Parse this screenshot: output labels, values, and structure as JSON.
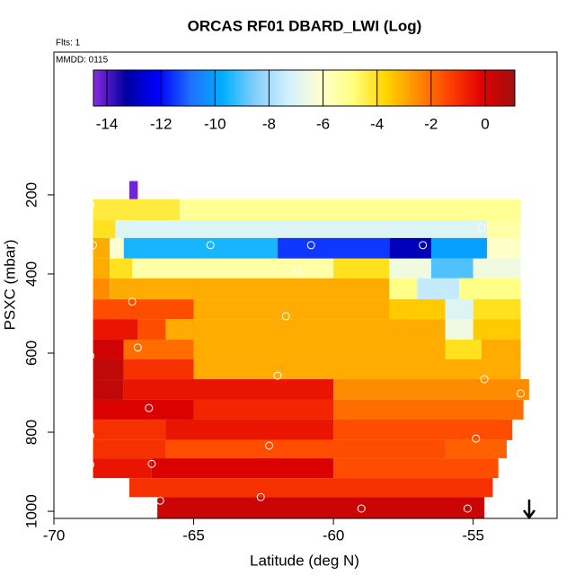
{
  "chart_data": {
    "type": "heatmap",
    "title": "ORCAS RF01 DBARD_LWI (Log)",
    "annotations": [
      "Flts: 1",
      "MMDD: 0115"
    ],
    "x_label": "Latitude (deg N)",
    "y_label": "PSXC (mbar)",
    "xlim": [
      -70,
      -52
    ],
    "xticks": [
      -70,
      -65,
      -60,
      -55
    ],
    "ylim": [
      1018,
      -161
    ],
    "yticks": [
      200,
      400,
      600,
      800,
      1000
    ],
    "colorbar": {
      "lim": [
        -14.5,
        1.1
      ],
      "ticks": [
        -14,
        -12,
        -10,
        -8,
        -6,
        -4,
        -2,
        0
      ],
      "colors": [
        "#8a2be2",
        "#0000a0",
        "#0000ff",
        "#1e70ff",
        "#00b0ff",
        "#87cefa",
        "#d0f0ff",
        "#ffffd0",
        "#ffff80",
        "#ffd700",
        "#ff8c00",
        "#ff4000",
        "#e00000",
        "#a01010"
      ]
    },
    "rows": [
      {
        "p": [
          165,
          211
        ],
        "cells": [
          {
            "lat": [
              -67.3,
              -67.0
            ],
            "value": -14.3
          }
        ]
      },
      {
        "p": [
          211,
          264
        ],
        "cells": [
          {
            "lat": [
              -68.6,
              -65.5
            ],
            "value": -4.3
          },
          {
            "lat": [
              -65.5,
              -53.3
            ],
            "value": -5.2
          }
        ]
      },
      {
        "p": [
          264,
          309
        ],
        "cells": [
          {
            "lat": [
              -68.6,
              -67.8
            ],
            "value": -4
          },
          {
            "lat": [
              -67.8,
              -54.5
            ],
            "value": -7
          },
          {
            "lat": [
              -54.5,
              -53.3
            ],
            "value": -5.5
          }
        ]
      },
      {
        "p": [
          309,
          361
        ],
        "cells": [
          {
            "lat": [
              -68.6,
              -68
            ],
            "value": -3
          },
          {
            "lat": [
              -68,
              -67.5
            ],
            "value": -6
          },
          {
            "lat": [
              -67.5,
              -62
            ],
            "value": -9.5
          },
          {
            "lat": [
              -62,
              -58
            ],
            "value": -11.5
          },
          {
            "lat": [
              -58,
              -56.5
            ],
            "value": -13
          },
          {
            "lat": [
              -56.5,
              -54.5
            ],
            "value": -10
          },
          {
            "lat": [
              -54.5,
              -53.3
            ],
            "value": -6
          }
        ]
      },
      {
        "p": [
          361,
          411
        ],
        "cells": [
          {
            "lat": [
              -68.6,
              -68
            ],
            "value": -3
          },
          {
            "lat": [
              -68,
              -67.2
            ],
            "value": -4
          },
          {
            "lat": [
              -67.2,
              -60
            ],
            "value": -5.5
          },
          {
            "lat": [
              -60,
              -58
            ],
            "value": -4
          },
          {
            "lat": [
              -58,
              -56.5
            ],
            "value": -6.5
          },
          {
            "lat": [
              -56.5,
              -55
            ],
            "value": -9
          },
          {
            "lat": [
              -55,
              -53.3
            ],
            "value": -6.5
          }
        ]
      },
      {
        "p": [
          411,
          464
        ],
        "cells": [
          {
            "lat": [
              -68.6,
              -68
            ],
            "value": -2.5
          },
          {
            "lat": [
              -68,
              -58
            ],
            "value": -3
          },
          {
            "lat": [
              -58,
              -57
            ],
            "value": -5
          },
          {
            "lat": [
              -57,
              -55.5
            ],
            "value": -7.5
          },
          {
            "lat": [
              -55.5,
              -53.3
            ],
            "value": -5
          }
        ]
      },
      {
        "p": [
          464,
          514
        ],
        "cells": [
          {
            "lat": [
              -68.6,
              -65
            ],
            "value": -1.5
          },
          {
            "lat": [
              -65,
              -58
            ],
            "value": -3
          },
          {
            "lat": [
              -58,
              -56
            ],
            "value": -3.5
          },
          {
            "lat": [
              -56,
              -55
            ],
            "value": -7
          },
          {
            "lat": [
              -55,
              -53.3
            ],
            "value": -4
          }
        ]
      },
      {
        "p": [
          514,
          566
        ],
        "cells": [
          {
            "lat": [
              -68.6,
              -67
            ],
            "value": -0.5
          },
          {
            "lat": [
              -67,
              -66
            ],
            "value": -1.5
          },
          {
            "lat": [
              -66,
              -56
            ],
            "value": -3
          },
          {
            "lat": [
              -56,
              -55
            ],
            "value": -6.5
          },
          {
            "lat": [
              -55,
              -53.3
            ],
            "value": -3.5
          }
        ]
      },
      {
        "p": [
          566,
          616
        ],
        "cells": [
          {
            "lat": [
              -68.6,
              -67.5
            ],
            "value": 0.2
          },
          {
            "lat": [
              -67.5,
              -65
            ],
            "value": -2
          },
          {
            "lat": [
              -65,
              -56
            ],
            "value": -3
          },
          {
            "lat": [
              -56,
              -54.7
            ],
            "value": -4
          },
          {
            "lat": [
              -54.7,
              -53.3
            ],
            "value": -3
          }
        ]
      },
      {
        "p": [
          616,
          666
        ],
        "cells": [
          {
            "lat": [
              -68.6,
              -67.5
            ],
            "value": 0.5
          },
          {
            "lat": [
              -67.5,
              -65
            ],
            "value": -1
          },
          {
            "lat": [
              -65,
              -53.3
            ],
            "value": -3
          }
        ]
      },
      {
        "p": [
          666,
          718
        ],
        "cells": [
          {
            "lat": [
              -68.6,
              -67.5
            ],
            "value": 0.5
          },
          {
            "lat": [
              -67.5,
              -60
            ],
            "value": -0.5
          },
          {
            "lat": [
              -60,
              -53
            ],
            "value": -2.5
          }
        ]
      },
      {
        "p": [
          718,
          768
        ],
        "cells": [
          {
            "lat": [
              -68.6,
              -65
            ],
            "value": 0
          },
          {
            "lat": [
              -65,
              -60
            ],
            "value": -0.8
          },
          {
            "lat": [
              -60,
              -53.2
            ],
            "value": -2
          }
        ]
      },
      {
        "p": [
          768,
          820
        ],
        "cells": [
          {
            "lat": [
              -68.6,
              -66
            ],
            "value": -1
          },
          {
            "lat": [
              -66,
              -60
            ],
            "value": -0.5
          },
          {
            "lat": [
              -60,
              -53.6
            ],
            "value": -1.5
          }
        ]
      },
      {
        "p": [
          820,
          866
        ],
        "cells": [
          {
            "lat": [
              -68.6,
              -66
            ],
            "value": -1
          },
          {
            "lat": [
              -66,
              -56
            ],
            "value": -1.5
          },
          {
            "lat": [
              -56,
              -53.8
            ],
            "value": -1.8
          }
        ]
      },
      {
        "p": [
          866,
          916
        ],
        "cells": [
          {
            "lat": [
              -68.6,
              -66.5
            ],
            "value": -0.5
          },
          {
            "lat": [
              -66.5,
              -60
            ],
            "value": 0
          },
          {
            "lat": [
              -60,
              -54.1
            ],
            "value": -1.5
          }
        ]
      },
      {
        "p": [
          916,
          964
        ],
        "cells": [
          {
            "lat": [
              -67.3,
              -54.3
            ],
            "value": -1
          }
        ]
      },
      {
        "p": [
          964,
          1018
        ],
        "cells": [
          {
            "lat": [
              -66.3,
              -54.6
            ],
            "value": 0.3
          }
        ]
      }
    ],
    "points": {
      "x": [
        -68.7,
        -67.5,
        -68.6,
        -67.8,
        -64.4,
        -60.8,
        -56.8,
        -54.7,
        -61.3,
        -67.2,
        -61.7,
        -67.0,
        -68.7,
        -62.0,
        -54.6,
        -53.3,
        -66.6,
        -68.7,
        -62.3,
        -54.9,
        -68.7,
        -66.5,
        -66.2,
        -62.6,
        -59.0,
        -55.2
      ],
      "y": [
        225,
        178,
        327,
        327,
        327,
        327,
        327,
        282,
        393,
        470,
        507,
        586,
        607,
        657,
        666,
        702,
        739,
        809,
        834,
        816,
        882,
        880,
        973,
        964,
        993,
        993
      ]
    }
  }
}
